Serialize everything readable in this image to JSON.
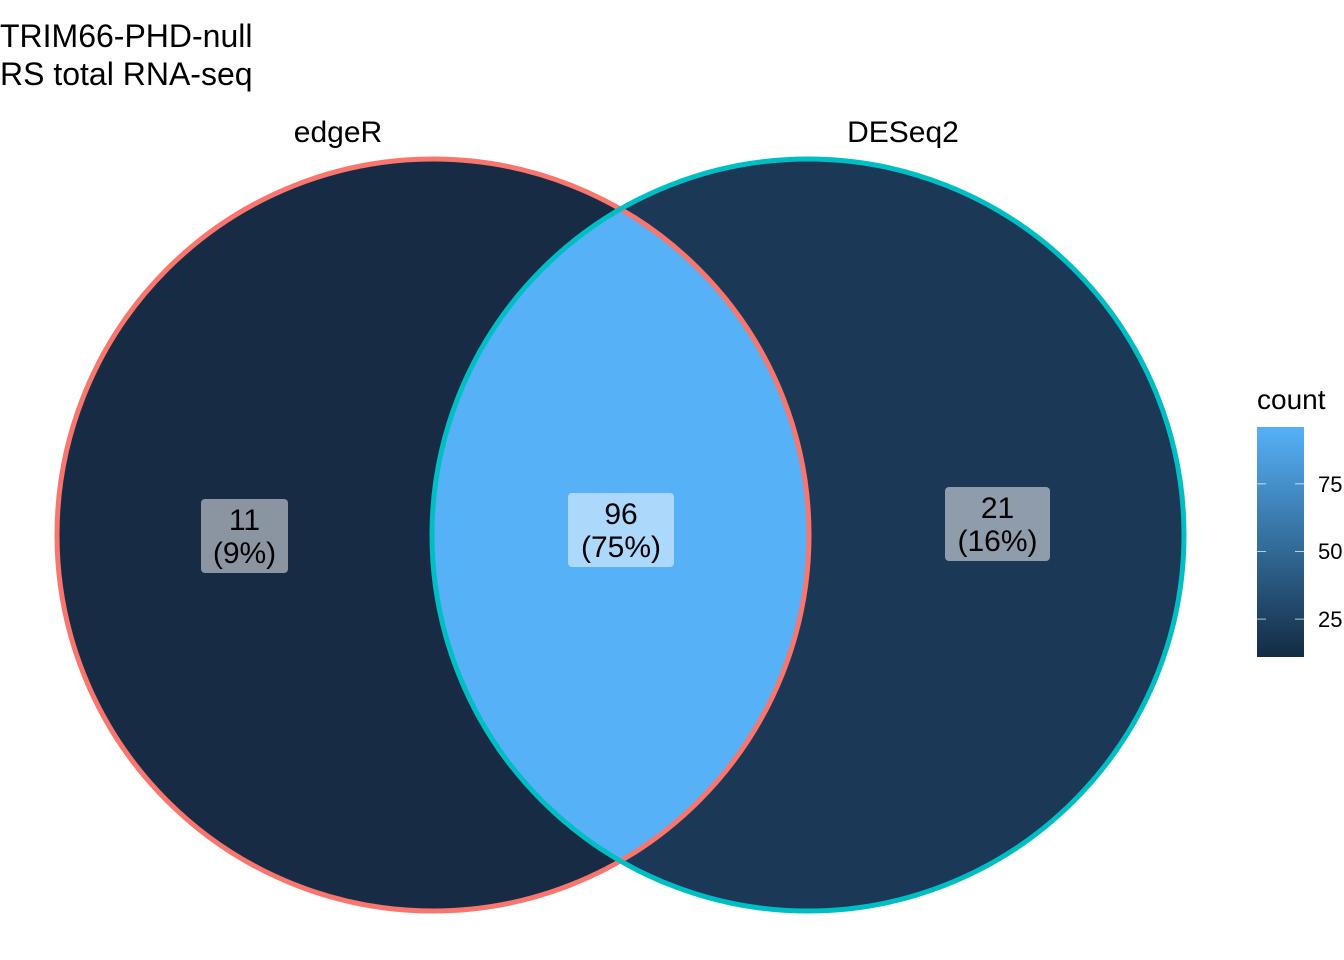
{
  "title_lines": [
    "TRIM66-PHD-null",
    "RS total RNA-seq"
  ],
  "sets": [
    {
      "name": "edgeR",
      "border_color": "#F8766D"
    },
    {
      "name": "DESeq2",
      "border_color": "#00BFC4"
    }
  ],
  "regions": [
    {
      "id": "edgeR-only",
      "count": "11",
      "percent": "(9%)",
      "value": 11,
      "fill": "#172B45"
    },
    {
      "id": "both",
      "count": "96",
      "percent": "(75%)",
      "value": 96,
      "fill": "#56B1F7"
    },
    {
      "id": "DESeq2-only",
      "count": "21",
      "percent": "(16%)",
      "value": 21,
      "fill": "#1C3857"
    }
  ],
  "legend": {
    "title": "count",
    "ticks": [
      "25",
      "50",
      "75"
    ],
    "tick_values": [
      25,
      50,
      75
    ],
    "range": [
      11,
      96
    ],
    "colors": {
      "low": "#132B43",
      "high": "#56B1F7"
    }
  }
}
